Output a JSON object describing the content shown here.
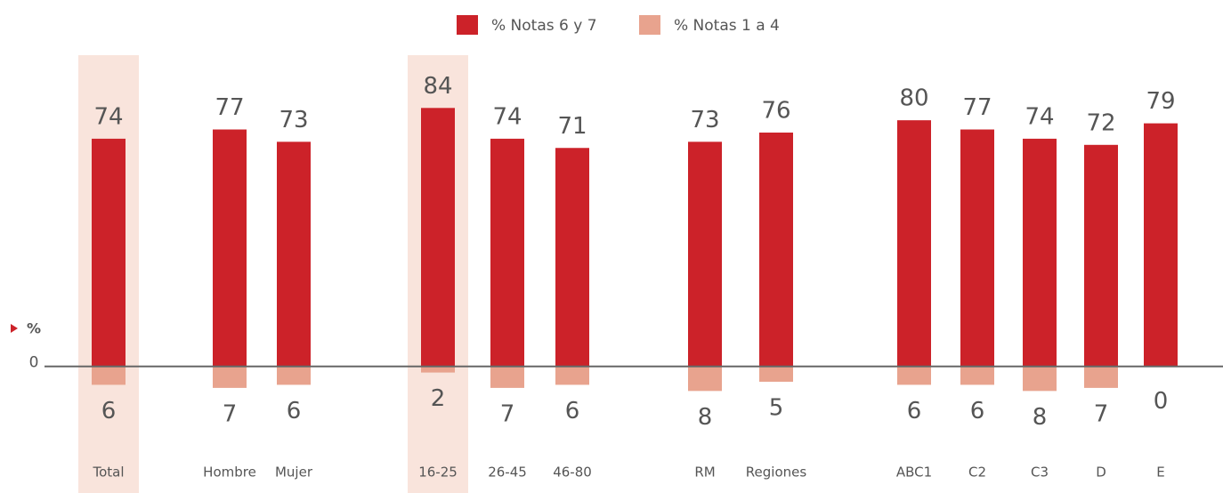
{
  "chart_data": {
    "type": "bar",
    "y_label": "%",
    "categories": [
      "Total",
      "Hombre",
      "Mujer",
      "16-25",
      "26-45",
      "46-80",
      "RM",
      "Regiones",
      "ABC1",
      "C2",
      "C3",
      "D",
      "E"
    ],
    "series": [
      {
        "name": "% Notas 6 y 7",
        "color": "#cc2229",
        "values": [
          74,
          77,
          73,
          84,
          74,
          71,
          73,
          76,
          80,
          77,
          74,
          72,
          79
        ]
      },
      {
        "name": "% Notas 1 a 4",
        "color": "#e8a38e",
        "values": [
          -6,
          -7,
          -6,
          -2,
          -7,
          -6,
          -8,
          -5,
          -6,
          -6,
          -8,
          -7,
          0
        ],
        "value_labels": [
          "6",
          "7",
          "6",
          "2",
          "7",
          "6",
          "8",
          "5",
          "6",
          "6",
          "8",
          "7",
          "0"
        ]
      }
    ],
    "ylim": [
      -16,
      100
    ],
    "yticks": [
      0
    ],
    "legend": "top"
  }
}
